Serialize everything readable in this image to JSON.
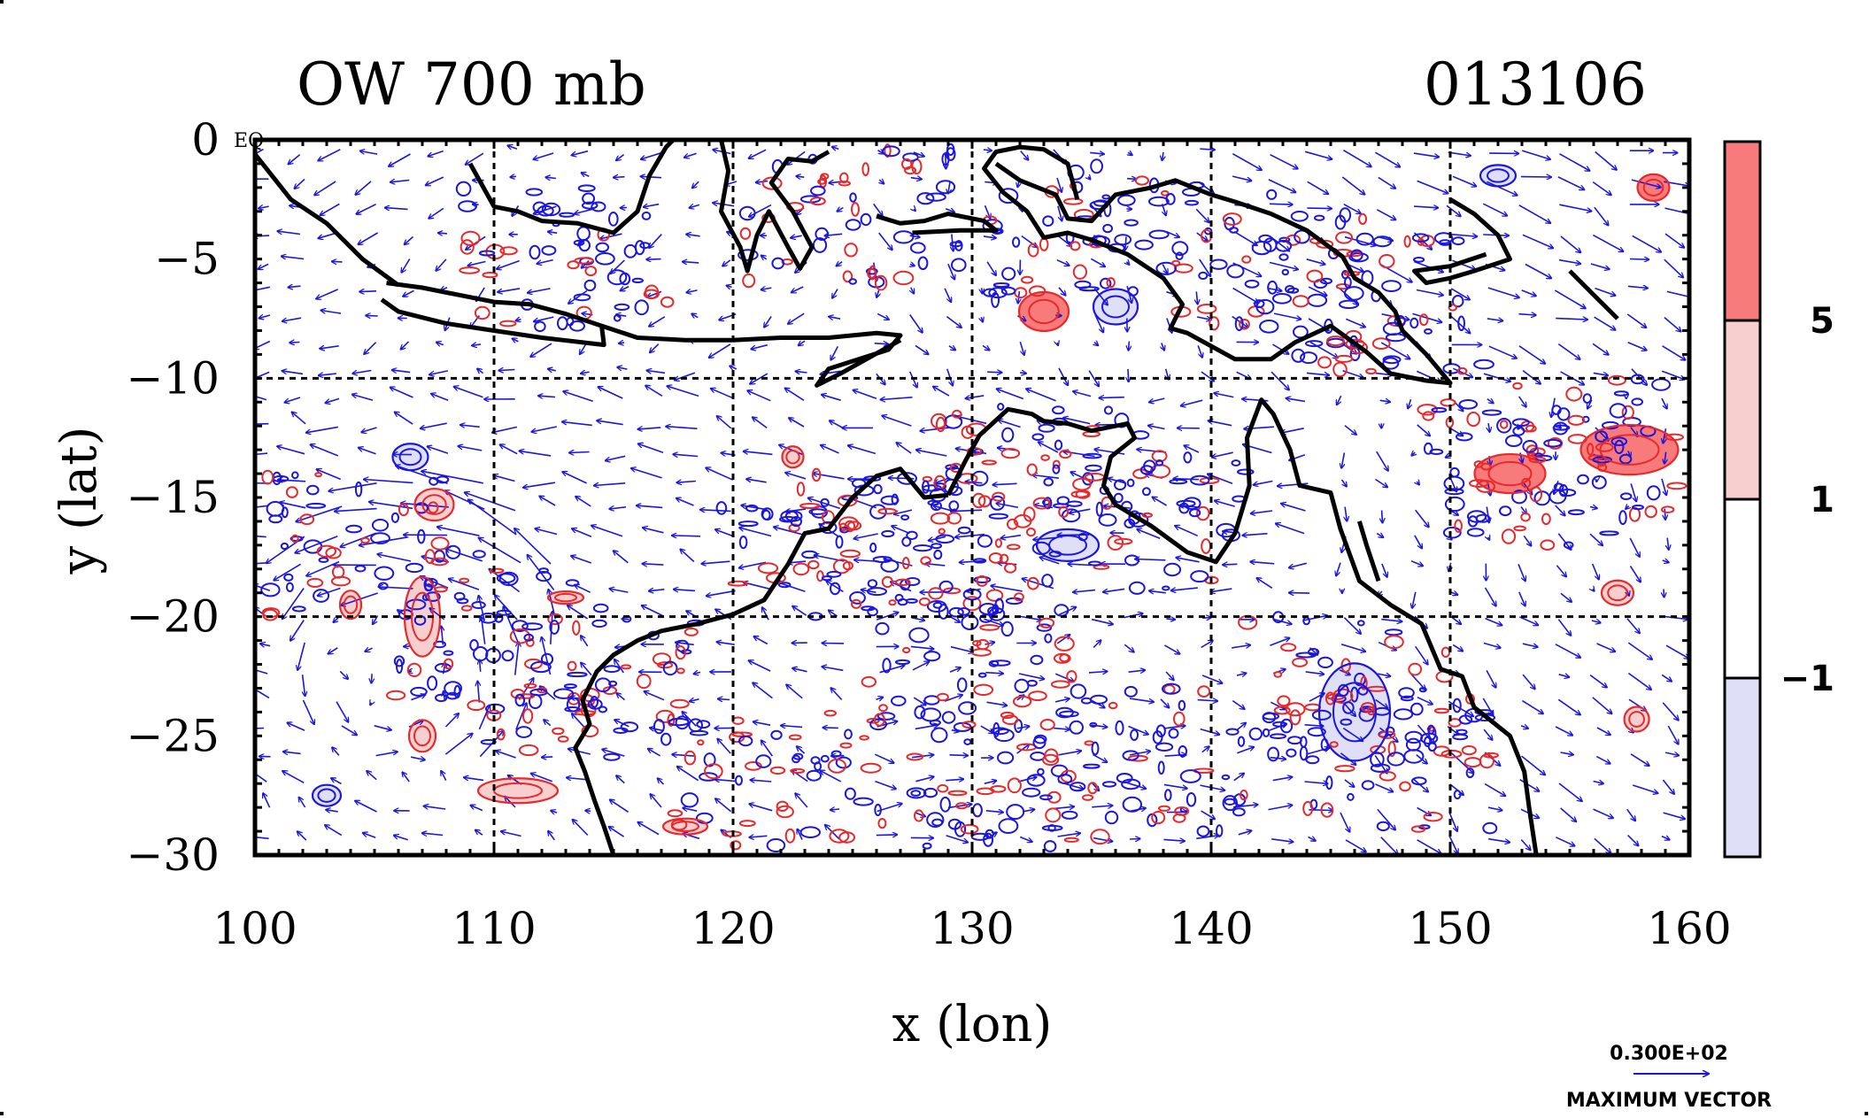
{
  "title_left": "OW 700 mb",
  "title_right": "013106",
  "eq_label": "EQ",
  "x_axis": {
    "label": "x (lon)",
    "range": [
      100,
      160
    ],
    "ticks": [
      "100",
      "110",
      "120",
      "130",
      "140",
      "150",
      "160"
    ]
  },
  "y_axis": {
    "label": "y (lat)",
    "range": [
      -30,
      0
    ],
    "ticks": [
      "0",
      "−5",
      "−10",
      "−15",
      "−20",
      "−25",
      "−30"
    ]
  },
  "colorbar": {
    "labels": [
      "5",
      "1",
      "−1"
    ],
    "colors": [
      "#f77b7b",
      "#f7cfcf",
      "#ffffff",
      "#dfe0f7"
    ]
  },
  "vector_legend": {
    "value": "0.300E+02",
    "label": "MAXIMUM VECTOR"
  },
  "colors": {
    "positive_contour": "#e8282a",
    "negative_contour": "#1a16e0",
    "vectors": "#1a16e0",
    "coast": "#000000"
  }
}
